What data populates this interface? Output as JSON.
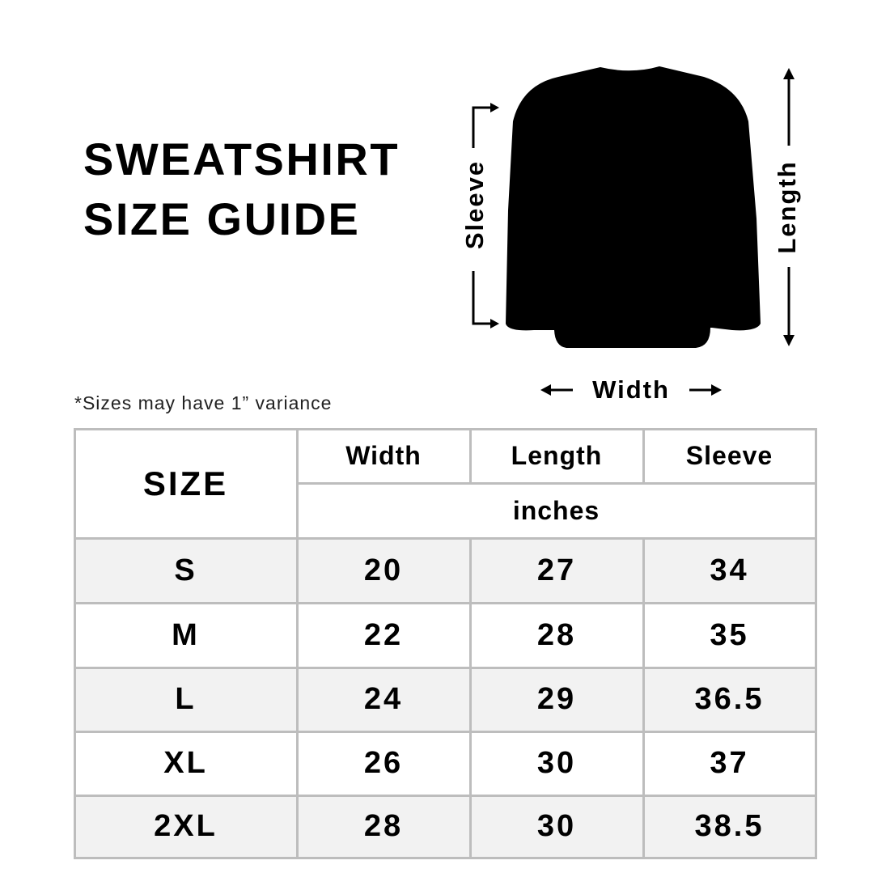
{
  "title": {
    "line1": "SWEATSHIRT",
    "line2": "SIZE GUIDE"
  },
  "note": "*Sizes may have 1” variance",
  "diagram": {
    "sleeve_label": "Sleeve",
    "length_label": "Length",
    "width_label": "Width",
    "garment_color": "#000000"
  },
  "table": {
    "size_header": "SIZE",
    "columns": [
      "Width",
      "Length",
      "Sleeve"
    ],
    "unit": "inches",
    "rows": [
      {
        "size": "S",
        "values": [
          "20",
          "27",
          "34"
        ]
      },
      {
        "size": "M",
        "values": [
          "22",
          "28",
          "35"
        ]
      },
      {
        "size": "L",
        "values": [
          "24",
          "29",
          "36.5"
        ]
      },
      {
        "size": "XL",
        "values": [
          "26",
          "30",
          "37"
        ]
      },
      {
        "size": "2XL",
        "values": [
          "28",
          "30",
          "38.5"
        ]
      }
    ],
    "border_color": "#bdbdbd",
    "stripe_color": "#f2f2f2"
  }
}
